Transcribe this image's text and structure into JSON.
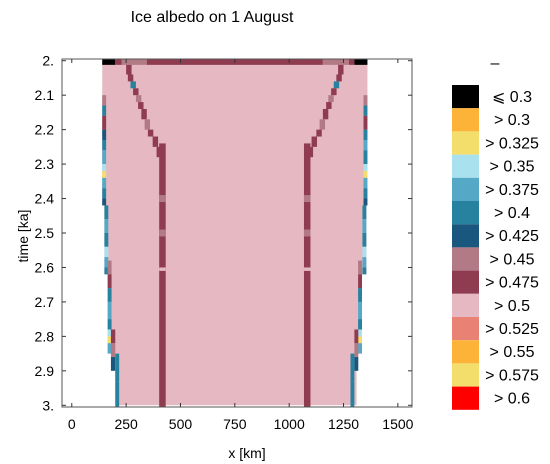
{
  "chart_data": {
    "type": "heatmap",
    "title": "Ice albedo on 1 August",
    "xlabel": "x [km]",
    "ylabel": "time [ka]",
    "xlim": [
      -45,
      1565
    ],
    "ylim": [
      1.995,
      3.005
    ],
    "y_reversed": true,
    "x_ticks": [
      0,
      250,
      500,
      750,
      1000,
      1250,
      1500
    ],
    "y_ticks": [
      2.0,
      2.1,
      2.2,
      2.3,
      2.4,
      2.5,
      2.6,
      2.7,
      2.8,
      2.9,
      3.0
    ],
    "x_tick_labels": [
      "0",
      "250",
      "500",
      "750",
      "1000",
      "1250",
      "1500"
    ],
    "y_tick_labels": [
      "2.",
      "2.1",
      "2.2",
      "2.3",
      "2.4",
      "2.5",
      "2.6",
      "2.7",
      "2.8",
      "2.9",
      "3."
    ],
    "legend_title": "–",
    "legend": [
      {
        "label": "⩽ 0.3",
        "color": "#000000"
      },
      {
        "label": "> 0.3",
        "color": "#FDB338"
      },
      {
        "label": "> 0.325",
        "color": "#F3DE6C"
      },
      {
        "label": "> 0.35",
        "color": "#A9E1EE"
      },
      {
        "label": "> 0.375",
        "color": "#55A8C6"
      },
      {
        "label": "> 0.4",
        "color": "#2782A0"
      },
      {
        "label": "> 0.425",
        "color": "#1A577F"
      },
      {
        "label": "> 0.45",
        "color": "#B27A85"
      },
      {
        "label": "> 0.475",
        "color": "#8F3C50"
      },
      {
        "label": "> 0.5",
        "color": "#E6B9C2"
      },
      {
        "label": "> 0.525",
        "color": "#E98175"
      },
      {
        "label": "> 0.55",
        "color": "#FDB338"
      },
      {
        "label": "> 0.575",
        "color": "#F3DE6C"
      },
      {
        "label": "> 0.6",
        "color": "#FF0000"
      }
    ],
    "regions": [
      {
        "name": "ice",
        "color": "#E6B9C2",
        "left": [
          [
            2.0,
            140
          ],
          [
            2.42,
            140
          ],
          [
            2.42,
            150
          ],
          [
            2.62,
            150
          ],
          [
            2.62,
            165
          ],
          [
            2.85,
            165
          ],
          [
            2.85,
            200
          ],
          [
            3.0,
            200
          ]
        ],
        "right": [
          [
            2.0,
            1360
          ],
          [
            2.42,
            1360
          ],
          [
            2.42,
            1355
          ],
          [
            2.62,
            1355
          ],
          [
            2.62,
            1335
          ],
          [
            2.85,
            1335
          ],
          [
            2.85,
            1310
          ],
          [
            3.0,
            1310
          ]
        ]
      }
    ],
    "cells": [
      {
        "x0": 140,
        "x1": 200,
        "y0": 1.995,
        "y1": 2.012,
        "color": "#000000"
      },
      {
        "x0": 200,
        "x1": 230,
        "y0": 1.995,
        "y1": 2.012,
        "color": "#8F3C50"
      },
      {
        "x0": 230,
        "x1": 345,
        "y0": 1.995,
        "y1": 2.012,
        "color": "#B27A85"
      },
      {
        "x0": 345,
        "x1": 1155,
        "y0": 1.995,
        "y1": 2.012,
        "color": "#8F3C50"
      },
      {
        "x0": 1155,
        "x1": 1275,
        "y0": 1.995,
        "y1": 2.012,
        "color": "#B27A85"
      },
      {
        "x0": 1275,
        "x1": 1300,
        "y0": 1.995,
        "y1": 2.012,
        "color": "#8F3C50"
      },
      {
        "x0": 1300,
        "x1": 1360,
        "y0": 1.995,
        "y1": 2.012,
        "color": "#000000"
      },
      {
        "x0": 402,
        "x1": 432,
        "y0": 2.24,
        "y1": 3.005,
        "color": "#8F3C50"
      },
      {
        "x0": 1068,
        "x1": 1098,
        "y0": 2.24,
        "y1": 3.005,
        "color": "#8F3C50"
      },
      {
        "x0": 402,
        "x1": 432,
        "y0": 2.39,
        "y1": 2.41,
        "color": "#B27A85"
      },
      {
        "x0": 402,
        "x1": 432,
        "y0": 2.49,
        "y1": 2.51,
        "color": "#B27A85"
      },
      {
        "x0": 402,
        "x1": 432,
        "y0": 2.6,
        "y1": 2.61,
        "color": "#E6B9C2"
      },
      {
        "x0": 1068,
        "x1": 1098,
        "y0": 2.39,
        "y1": 2.41,
        "color": "#B27A85"
      },
      {
        "x0": 1068,
        "x1": 1098,
        "y0": 2.49,
        "y1": 2.51,
        "color": "#B27A85"
      },
      {
        "x0": 1068,
        "x1": 1098,
        "y0": 2.6,
        "y1": 2.61,
        "color": "#E6B9C2"
      },
      {
        "x0": 250,
        "x1": 275,
        "y0": 2.012,
        "y1": 2.04,
        "color": "#8F3C50"
      },
      {
        "x0": 258,
        "x1": 283,
        "y0": 2.04,
        "y1": 2.06,
        "color": "#8F3C50"
      },
      {
        "x0": 270,
        "x1": 295,
        "y0": 2.06,
        "y1": 2.08,
        "color": "#2782A0"
      },
      {
        "x0": 282,
        "x1": 307,
        "y0": 2.08,
        "y1": 2.1,
        "color": "#8F3C50"
      },
      {
        "x0": 295,
        "x1": 320,
        "y0": 2.1,
        "y1": 2.12,
        "color": "#B27A85"
      },
      {
        "x0": 305,
        "x1": 330,
        "y0": 2.12,
        "y1": 2.14,
        "color": "#8F3C50"
      },
      {
        "x0": 320,
        "x1": 345,
        "y0": 2.14,
        "y1": 2.17,
        "color": "#8F3C50"
      },
      {
        "x0": 335,
        "x1": 360,
        "y0": 2.17,
        "y1": 2.2,
        "color": "#B27A85"
      },
      {
        "x0": 350,
        "x1": 375,
        "y0": 2.2,
        "y1": 2.22,
        "color": "#8F3C50"
      },
      {
        "x0": 372,
        "x1": 397,
        "y0": 2.22,
        "y1": 2.25,
        "color": "#8F3C50"
      },
      {
        "x0": 390,
        "x1": 410,
        "y0": 2.25,
        "y1": 2.28,
        "color": "#8F3C50"
      },
      {
        "x0": 1225,
        "x1": 1250,
        "y0": 2.012,
        "y1": 2.04,
        "color": "#8F3C50"
      },
      {
        "x0": 1217,
        "x1": 1242,
        "y0": 2.04,
        "y1": 2.06,
        "color": "#8F3C50"
      },
      {
        "x0": 1205,
        "x1": 1230,
        "y0": 2.06,
        "y1": 2.08,
        "color": "#2782A0"
      },
      {
        "x0": 1193,
        "x1": 1218,
        "y0": 2.08,
        "y1": 2.1,
        "color": "#8F3C50"
      },
      {
        "x0": 1180,
        "x1": 1205,
        "y0": 2.1,
        "y1": 2.12,
        "color": "#B27A85"
      },
      {
        "x0": 1170,
        "x1": 1195,
        "y0": 2.12,
        "y1": 2.14,
        "color": "#8F3C50"
      },
      {
        "x0": 1155,
        "x1": 1180,
        "y0": 2.14,
        "y1": 2.17,
        "color": "#8F3C50"
      },
      {
        "x0": 1140,
        "x1": 1165,
        "y0": 2.17,
        "y1": 2.2,
        "color": "#B27A85"
      },
      {
        "x0": 1125,
        "x1": 1150,
        "y0": 2.2,
        "y1": 2.22,
        "color": "#8F3C50"
      },
      {
        "x0": 1103,
        "x1": 1128,
        "y0": 2.22,
        "y1": 2.25,
        "color": "#8F3C50"
      },
      {
        "x0": 1090,
        "x1": 1110,
        "y0": 2.25,
        "y1": 2.28,
        "color": "#8F3C50"
      },
      {
        "x0": 140,
        "x1": 158,
        "y0": 2.1,
        "y1": 2.13,
        "color": "#B27A85"
      },
      {
        "x0": 140,
        "x1": 158,
        "y0": 2.13,
        "y1": 2.16,
        "color": "#2782A0"
      },
      {
        "x0": 140,
        "x1": 158,
        "y0": 2.16,
        "y1": 2.2,
        "color": "#8F3C50"
      },
      {
        "x0": 140,
        "x1": 158,
        "y0": 2.2,
        "y1": 2.23,
        "color": "#1A577F"
      },
      {
        "x0": 140,
        "x1": 158,
        "y0": 2.23,
        "y1": 2.26,
        "color": "#2782A0"
      },
      {
        "x0": 140,
        "x1": 158,
        "y0": 2.26,
        "y1": 2.3,
        "color": "#55A8C6"
      },
      {
        "x0": 140,
        "x1": 158,
        "y0": 2.3,
        "y1": 2.32,
        "color": "#A9E1EE"
      },
      {
        "x0": 140,
        "x1": 158,
        "y0": 2.32,
        "y1": 2.34,
        "color": "#F3DE6C"
      },
      {
        "x0": 140,
        "x1": 158,
        "y0": 2.34,
        "y1": 2.37,
        "color": "#55A8C6"
      },
      {
        "x0": 140,
        "x1": 158,
        "y0": 2.37,
        "y1": 2.4,
        "color": "#2782A0"
      },
      {
        "x0": 140,
        "x1": 158,
        "y0": 2.4,
        "y1": 2.42,
        "color": "#1A577F"
      },
      {
        "x0": 150,
        "x1": 168,
        "y0": 2.42,
        "y1": 2.46,
        "color": "#2782A0"
      },
      {
        "x0": 150,
        "x1": 168,
        "y0": 2.46,
        "y1": 2.5,
        "color": "#55A8C6"
      },
      {
        "x0": 150,
        "x1": 168,
        "y0": 2.5,
        "y1": 2.54,
        "color": "#2782A0"
      },
      {
        "x0": 150,
        "x1": 168,
        "y0": 2.54,
        "y1": 2.57,
        "color": "#A9E1EE"
      },
      {
        "x0": 150,
        "x1": 168,
        "y0": 2.57,
        "y1": 2.6,
        "color": "#55A8C6"
      },
      {
        "x0": 150,
        "x1": 168,
        "y0": 2.6,
        "y1": 2.62,
        "color": "#2782A0"
      },
      {
        "x0": 165,
        "x1": 183,
        "y0": 2.58,
        "y1": 2.62,
        "color": "#B27A85"
      },
      {
        "x0": 165,
        "x1": 183,
        "y0": 2.62,
        "y1": 2.66,
        "color": "#8F3C50"
      },
      {
        "x0": 165,
        "x1": 183,
        "y0": 2.66,
        "y1": 2.7,
        "color": "#2782A0"
      },
      {
        "x0": 165,
        "x1": 183,
        "y0": 2.7,
        "y1": 2.75,
        "color": "#55A8C6"
      },
      {
        "x0": 165,
        "x1": 183,
        "y0": 2.75,
        "y1": 2.78,
        "color": "#2782A0"
      },
      {
        "x0": 165,
        "x1": 183,
        "y0": 2.78,
        "y1": 2.8,
        "color": "#A9E1EE"
      },
      {
        "x0": 165,
        "x1": 183,
        "y0": 2.8,
        "y1": 2.82,
        "color": "#F3DE6C"
      },
      {
        "x0": 165,
        "x1": 183,
        "y0": 2.82,
        "y1": 2.85,
        "color": "#55A8C6"
      },
      {
        "x0": 180,
        "x1": 200,
        "y0": 2.78,
        "y1": 2.82,
        "color": "#8F3C50"
      },
      {
        "x0": 180,
        "x1": 200,
        "y0": 2.82,
        "y1": 2.86,
        "color": "#B27A85"
      },
      {
        "x0": 180,
        "x1": 200,
        "y0": 2.86,
        "y1": 2.9,
        "color": "#1A577F"
      },
      {
        "x0": 200,
        "x1": 218,
        "y0": 2.85,
        "y1": 2.93,
        "color": "#2782A0"
      },
      {
        "x0": 200,
        "x1": 218,
        "y0": 2.93,
        "y1": 3.005,
        "color": "#2782A0"
      },
      {
        "x0": 1342,
        "x1": 1360,
        "y0": 2.1,
        "y1": 2.13,
        "color": "#B27A85"
      },
      {
        "x0": 1342,
        "x1": 1360,
        "y0": 2.13,
        "y1": 2.16,
        "color": "#2782A0"
      },
      {
        "x0": 1342,
        "x1": 1360,
        "y0": 2.16,
        "y1": 2.2,
        "color": "#8F3C50"
      },
      {
        "x0": 1342,
        "x1": 1360,
        "y0": 2.2,
        "y1": 2.23,
        "color": "#2782A0"
      },
      {
        "x0": 1342,
        "x1": 1360,
        "y0": 2.23,
        "y1": 2.26,
        "color": "#55A8C6"
      },
      {
        "x0": 1342,
        "x1": 1360,
        "y0": 2.26,
        "y1": 2.3,
        "color": "#2782A0"
      },
      {
        "x0": 1342,
        "x1": 1360,
        "y0": 2.3,
        "y1": 2.32,
        "color": "#A9E1EE"
      },
      {
        "x0": 1342,
        "x1": 1360,
        "y0": 2.32,
        "y1": 2.34,
        "color": "#F3DE6C"
      },
      {
        "x0": 1342,
        "x1": 1360,
        "y0": 2.34,
        "y1": 2.37,
        "color": "#55A8C6"
      },
      {
        "x0": 1342,
        "x1": 1360,
        "y0": 2.37,
        "y1": 2.4,
        "color": "#2782A0"
      },
      {
        "x0": 1342,
        "x1": 1360,
        "y0": 2.4,
        "y1": 2.42,
        "color": "#1A577F"
      },
      {
        "x0": 1337,
        "x1": 1355,
        "y0": 2.42,
        "y1": 2.46,
        "color": "#2782A0"
      },
      {
        "x0": 1337,
        "x1": 1355,
        "y0": 2.46,
        "y1": 2.5,
        "color": "#55A8C6"
      },
      {
        "x0": 1337,
        "x1": 1355,
        "y0": 2.5,
        "y1": 2.54,
        "color": "#2782A0"
      },
      {
        "x0": 1337,
        "x1": 1355,
        "y0": 2.54,
        "y1": 2.57,
        "color": "#A9E1EE"
      },
      {
        "x0": 1337,
        "x1": 1355,
        "y0": 2.57,
        "y1": 2.6,
        "color": "#55A8C6"
      },
      {
        "x0": 1337,
        "x1": 1355,
        "y0": 2.6,
        "y1": 2.62,
        "color": "#2782A0"
      },
      {
        "x0": 1317,
        "x1": 1335,
        "y0": 2.58,
        "y1": 2.62,
        "color": "#B27A85"
      },
      {
        "x0": 1317,
        "x1": 1335,
        "y0": 2.62,
        "y1": 2.66,
        "color": "#8F3C50"
      },
      {
        "x0": 1317,
        "x1": 1335,
        "y0": 2.66,
        "y1": 2.7,
        "color": "#2782A0"
      },
      {
        "x0": 1317,
        "x1": 1335,
        "y0": 2.7,
        "y1": 2.75,
        "color": "#55A8C6"
      },
      {
        "x0": 1317,
        "x1": 1335,
        "y0": 2.75,
        "y1": 2.78,
        "color": "#2782A0"
      },
      {
        "x0": 1317,
        "x1": 1335,
        "y0": 2.78,
        "y1": 2.8,
        "color": "#A9E1EE"
      },
      {
        "x0": 1317,
        "x1": 1335,
        "y0": 2.8,
        "y1": 2.82,
        "color": "#F3DE6C"
      },
      {
        "x0": 1317,
        "x1": 1335,
        "y0": 2.82,
        "y1": 2.85,
        "color": "#55A8C6"
      },
      {
        "x0": 1300,
        "x1": 1318,
        "y0": 2.78,
        "y1": 2.82,
        "color": "#8F3C50"
      },
      {
        "x0": 1300,
        "x1": 1318,
        "y0": 2.82,
        "y1": 2.86,
        "color": "#B27A85"
      },
      {
        "x0": 1300,
        "x1": 1318,
        "y0": 2.86,
        "y1": 2.9,
        "color": "#1A577F"
      },
      {
        "x0": 1282,
        "x1": 1300,
        "y0": 2.85,
        "y1": 2.93,
        "color": "#2782A0"
      },
      {
        "x0": 1282,
        "x1": 1300,
        "y0": 2.93,
        "y1": 3.005,
        "color": "#2782A0"
      }
    ]
  }
}
